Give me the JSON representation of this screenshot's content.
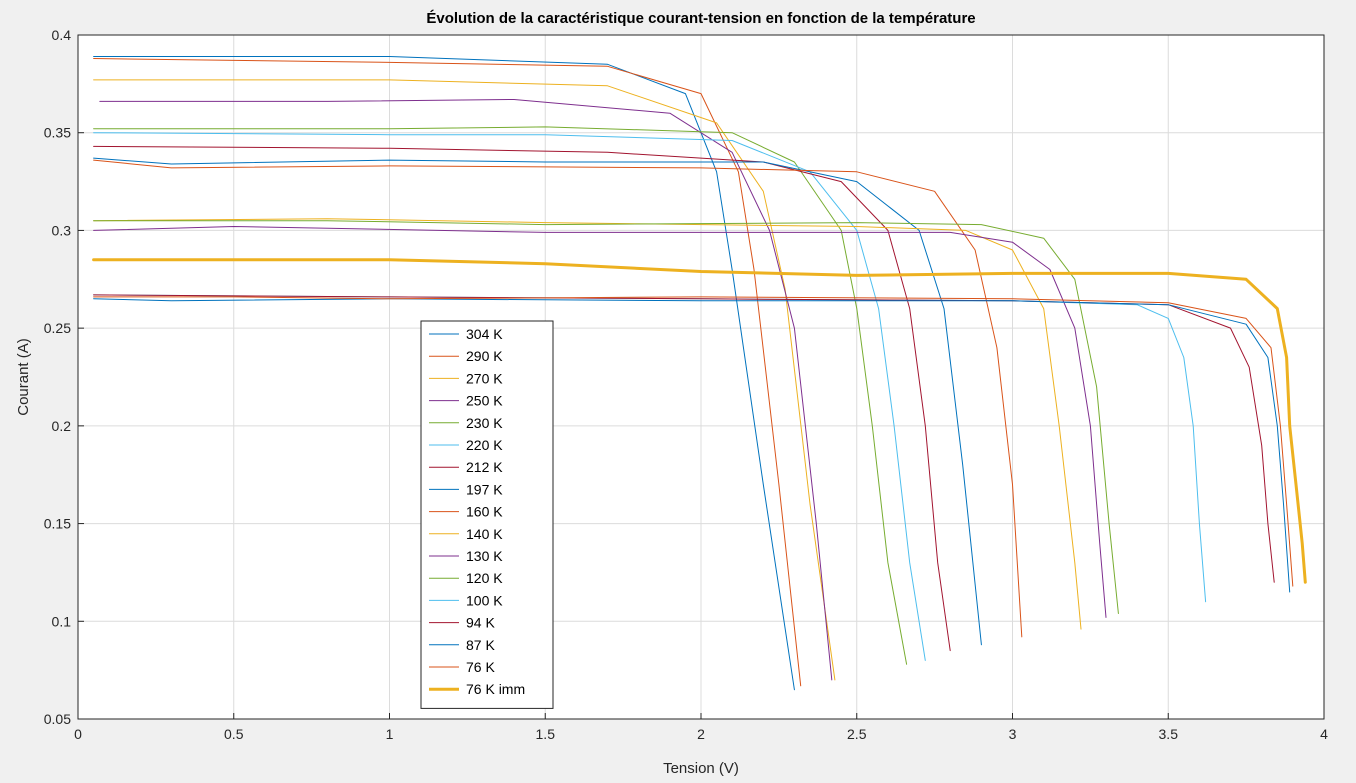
{
  "chart_data": {
    "type": "line",
    "title": "Évolution de la caractéristique courant-tension en fonction de la température",
    "xlabel": "Tension (V)",
    "ylabel": "Courant (A)",
    "xlim": [
      0,
      4
    ],
    "ylim": [
      0.05,
      0.4
    ],
    "xticks": [
      0,
      0.5,
      1,
      1.5,
      2,
      2.5,
      3,
      3.5,
      4
    ],
    "xtick_labels": [
      "0",
      "0.5",
      "1",
      "1.5",
      "2",
      "2.5",
      "3",
      "3.5",
      "4"
    ],
    "yticks": [
      0.05,
      0.1,
      0.15,
      0.2,
      0.25,
      0.3,
      0.35,
      0.4
    ],
    "ytick_labels": [
      "0.05",
      "0.1",
      "0.15",
      "0.2",
      "0.25",
      "0.3",
      "0.35",
      "0.4"
    ],
    "grid": true,
    "legend_position": "center-left",
    "series": [
      {
        "name": "304 K",
        "color": "#0072BD",
        "width": 1,
        "x": [
          0.05,
          1,
          1.7,
          1.95,
          2.05,
          2.1,
          2.2,
          2.3
        ],
        "y": [
          0.389,
          0.389,
          0.385,
          0.37,
          0.33,
          0.28,
          0.17,
          0.065
        ]
      },
      {
        "name": "290 K",
        "color": "#D95319",
        "width": 1,
        "x": [
          0.05,
          1,
          1.7,
          2.0,
          2.12,
          2.17,
          2.25,
          2.32
        ],
        "y": [
          0.388,
          0.386,
          0.384,
          0.37,
          0.33,
          0.28,
          0.17,
          0.067
        ]
      },
      {
        "name": "270 K",
        "color": "#EDB120",
        "width": 1,
        "x": [
          0.05,
          1,
          1.7,
          2.05,
          2.2,
          2.27,
          2.35,
          2.43
        ],
        "y": [
          0.377,
          0.377,
          0.374,
          0.355,
          0.32,
          0.27,
          0.16,
          0.07
        ]
      },
      {
        "name": "250 K",
        "color": "#7E2F8E",
        "width": 1,
        "x": [
          0.07,
          0.8,
          1.4,
          1.9,
          2.1,
          2.22,
          2.3,
          2.37,
          2.42
        ],
        "y": [
          0.366,
          0.366,
          0.367,
          0.36,
          0.34,
          0.3,
          0.25,
          0.15,
          0.07
        ]
      },
      {
        "name": "230 K",
        "color": "#77AC30",
        "width": 1,
        "x": [
          0.05,
          1,
          1.5,
          2.1,
          2.3,
          2.45,
          2.5,
          2.55,
          2.6,
          2.66
        ],
        "y": [
          0.352,
          0.352,
          0.353,
          0.35,
          0.335,
          0.3,
          0.26,
          0.2,
          0.13,
          0.078
        ]
      },
      {
        "name": "220 K",
        "color": "#4DBEEE",
        "width": 1,
        "x": [
          0.05,
          1,
          1.5,
          2.1,
          2.35,
          2.5,
          2.57,
          2.62,
          2.67,
          2.72
        ],
        "y": [
          0.35,
          0.349,
          0.349,
          0.346,
          0.33,
          0.3,
          0.26,
          0.2,
          0.13,
          0.08
        ]
      },
      {
        "name": "212 K",
        "color": "#A2142F",
        "width": 1,
        "x": [
          0.05,
          1,
          1.7,
          2.2,
          2.45,
          2.6,
          2.67,
          2.72,
          2.76,
          2.8
        ],
        "y": [
          0.343,
          0.342,
          0.34,
          0.335,
          0.325,
          0.3,
          0.26,
          0.2,
          0.13,
          0.085
        ]
      },
      {
        "name": "197 K",
        "color": "#0072BD",
        "width": 1,
        "x": [
          0.05,
          0.3,
          1,
          1.5,
          2.2,
          2.5,
          2.7,
          2.78,
          2.84,
          2.9
        ],
        "y": [
          0.337,
          0.334,
          0.336,
          0.335,
          0.335,
          0.325,
          0.3,
          0.26,
          0.18,
          0.088
        ]
      },
      {
        "name": "160 K",
        "color": "#D95319",
        "width": 1,
        "x": [
          0.05,
          0.3,
          1,
          2,
          2.5,
          2.75,
          2.88,
          2.95,
          3.0,
          3.03
        ],
        "y": [
          0.336,
          0.332,
          0.333,
          0.332,
          0.33,
          0.32,
          0.29,
          0.24,
          0.17,
          0.092
        ]
      },
      {
        "name": "140 K",
        "color": "#EDB120",
        "width": 1,
        "x": [
          0.05,
          0.8,
          1.5,
          2.5,
          2.85,
          3.0,
          3.1,
          3.15,
          3.2,
          3.22
        ],
        "y": [
          0.305,
          0.306,
          0.304,
          0.302,
          0.3,
          0.29,
          0.26,
          0.2,
          0.13,
          0.096
        ]
      },
      {
        "name": "130 K",
        "color": "#7E2F8E",
        "width": 1,
        "x": [
          0.05,
          0.5,
          1.5,
          2.8,
          3.0,
          3.12,
          3.2,
          3.25,
          3.28,
          3.3
        ],
        "y": [
          0.3,
          0.302,
          0.299,
          0.299,
          0.294,
          0.28,
          0.25,
          0.2,
          0.14,
          0.102
        ]
      },
      {
        "name": "120 K",
        "color": "#77AC30",
        "width": 1,
        "x": [
          0.05,
          0.8,
          1.5,
          2.5,
          2.9,
          3.1,
          3.2,
          3.27,
          3.31,
          3.34
        ],
        "y": [
          0.305,
          0.305,
          0.303,
          0.304,
          0.303,
          0.296,
          0.275,
          0.22,
          0.15,
          0.104
        ]
      },
      {
        "name": "100 K",
        "color": "#4DBEEE",
        "width": 1,
        "x": [
          0.05,
          1,
          2,
          3,
          3.4,
          3.5,
          3.55,
          3.58,
          3.6,
          3.62
        ],
        "y": [
          0.267,
          0.266,
          0.265,
          0.264,
          0.262,
          0.255,
          0.235,
          0.2,
          0.15,
          0.11
        ]
      },
      {
        "name": "94 K",
        "color": "#A2142F",
        "width": 1,
        "x": [
          0.05,
          1,
          2,
          3,
          3.5,
          3.7,
          3.76,
          3.8,
          3.82,
          3.84
        ],
        "y": [
          0.267,
          0.266,
          0.265,
          0.264,
          0.262,
          0.25,
          0.23,
          0.19,
          0.15,
          0.12
        ]
      },
      {
        "name": "87 K",
        "color": "#0072BD",
        "width": 1,
        "x": [
          0.05,
          0.3,
          1,
          2,
          3,
          3.5,
          3.75,
          3.82,
          3.85,
          3.87,
          3.89
        ],
        "y": [
          0.265,
          0.264,
          0.265,
          0.264,
          0.264,
          0.262,
          0.252,
          0.235,
          0.2,
          0.16,
          0.115
        ]
      },
      {
        "name": "76 K",
        "color": "#D95319",
        "width": 1,
        "x": [
          0.05,
          0.5,
          1,
          2,
          3,
          3.5,
          3.75,
          3.83,
          3.86,
          3.88,
          3.9
        ],
        "y": [
          0.266,
          0.266,
          0.265,
          0.266,
          0.265,
          0.263,
          0.255,
          0.24,
          0.2,
          0.16,
          0.118
        ]
      },
      {
        "name": "76 K imm",
        "color": "#EDB120",
        "width": 3,
        "x": [
          0.05,
          0.5,
          1,
          1.5,
          2,
          2.5,
          3,
          3.5,
          3.75,
          3.85,
          3.88,
          3.89,
          3.91,
          3.93,
          3.94
        ],
        "y": [
          0.285,
          0.285,
          0.285,
          0.283,
          0.279,
          0.277,
          0.278,
          0.278,
          0.275,
          0.26,
          0.235,
          0.2,
          0.17,
          0.14,
          0.12
        ]
      }
    ]
  }
}
